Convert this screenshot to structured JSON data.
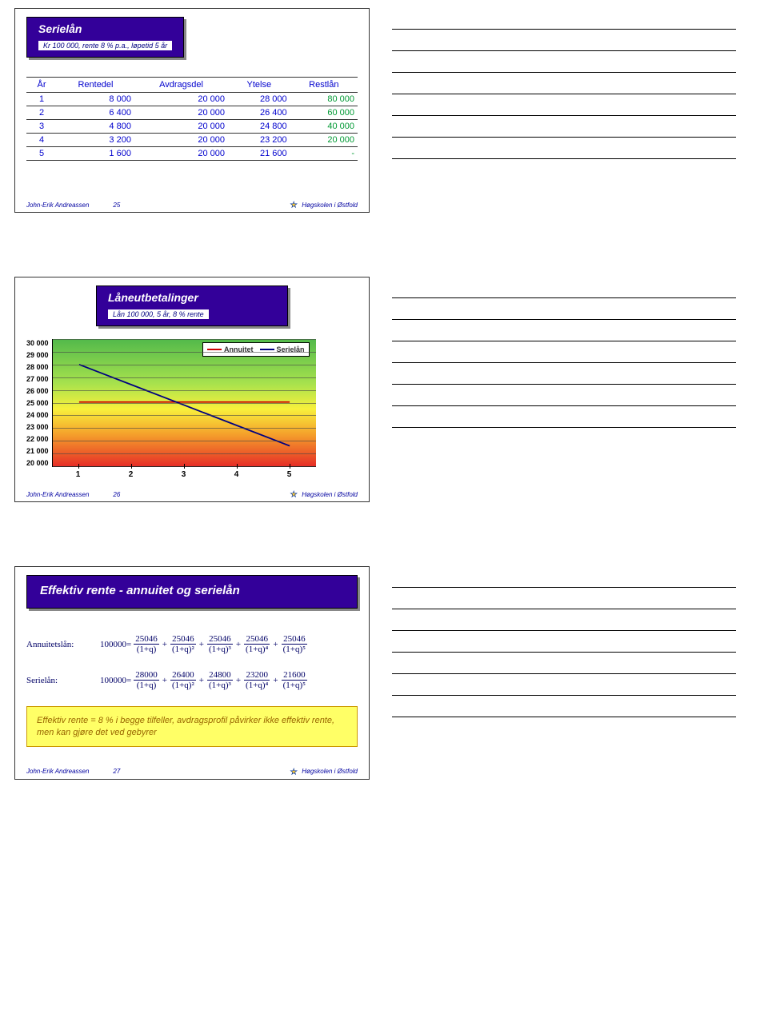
{
  "slide1": {
    "title": "Serielån",
    "subtitle": "Kr 100 000, rente 8 % p.a., løpetid 5 år",
    "columns": [
      "År",
      "Rentedel",
      "Avdragsdel",
      "Ytelse",
      "Restlån"
    ],
    "rows": [
      [
        "1",
        "8 000",
        "20 000",
        "28 000",
        "80 000"
      ],
      [
        "2",
        "6 400",
        "20 000",
        "26 400",
        "60 000"
      ],
      [
        "3",
        "4 800",
        "20 000",
        "24 800",
        "40 000"
      ],
      [
        "4",
        "3 200",
        "20 000",
        "23 200",
        "20 000"
      ],
      [
        "5",
        "1 600",
        "20 000",
        "21 600",
        "-"
      ]
    ],
    "footer_author": "John-Erik Andreassen",
    "footer_page": "25",
    "footer_inst": "Høgskolen i Østfold"
  },
  "slide2": {
    "title": "Låneutbetalinger",
    "subtitle": "Lån 100 000, 5 år, 8 % rente",
    "y_ticks": [
      "30 000",
      "29 000",
      "28 000",
      "27 000",
      "26 000",
      "25 000",
      "24 000",
      "23 000",
      "22 000",
      "21 000",
      "20 000"
    ],
    "x_ticks": [
      "1",
      "2",
      "3",
      "4",
      "5"
    ],
    "y_min": 20000,
    "y_max": 30000,
    "series": {
      "annuitet": {
        "label": "Annuitet",
        "color": "#cc0000",
        "values": [
          25046,
          25046,
          25046,
          25046,
          25046
        ]
      },
      "serielan": {
        "label": "Serielån",
        "color": "#000080",
        "values": [
          28000,
          26400,
          24800,
          23200,
          21600
        ]
      }
    },
    "footer_author": "John-Erik Andreassen",
    "footer_page": "26",
    "footer_inst": "Høgskolen i Østfold"
  },
  "slide3": {
    "title": "Effektiv rente - annuitet og serielån",
    "annuitet_label": "Annuitetslån:",
    "serielan_label": "Serielån:",
    "lhs": "100000",
    "eq": "=",
    "annuitet_terms": [
      {
        "num": "25046",
        "den": "(1+q)"
      },
      {
        "num": "25046",
        "den": "(1+q)²"
      },
      {
        "num": "25046",
        "den": "(1+q)³"
      },
      {
        "num": "25046",
        "den": "(1+q)⁴"
      },
      {
        "num": "25046",
        "den": "(1+q)⁵"
      }
    ],
    "serielan_terms": [
      {
        "num": "28000",
        "den": "(1+q)"
      },
      {
        "num": "26400",
        "den": "(1+q)²"
      },
      {
        "num": "24800",
        "den": "(1+q)³"
      },
      {
        "num": "23200",
        "den": "(1+q)⁴"
      },
      {
        "num": "21600",
        "den": "(1+q)⁵"
      }
    ],
    "note": "Effektiv rente = 8 % i begge tilfeller, avdragsprofil påvirker ikke effektiv rente, men kan gjøre det ved gebyrer",
    "footer_author": "John-Erik Andreassen",
    "footer_page": "27",
    "footer_inst": "Høgskolen i Østfold"
  },
  "notes_line_count": 7
}
